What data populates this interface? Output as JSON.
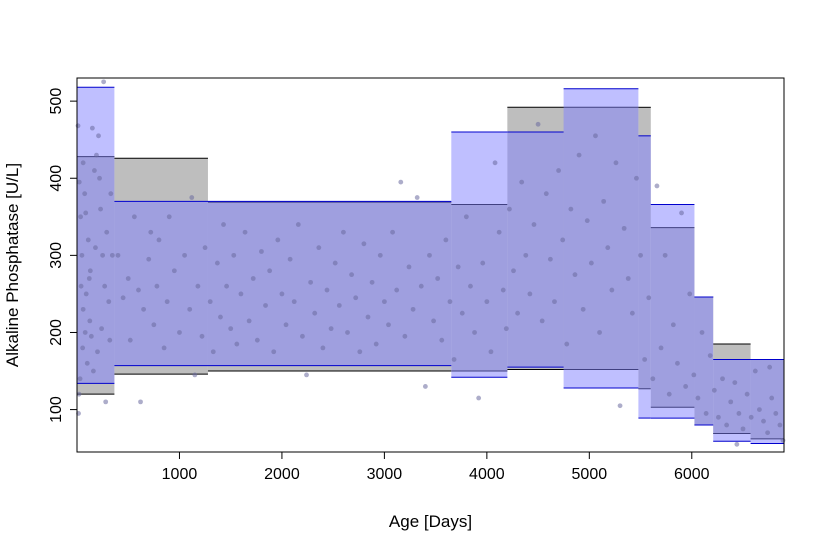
{
  "chart_data": {
    "type": "scatter",
    "xlabel": "Age [Days]",
    "ylabel": "Alkaline Phosphatase [U/L]",
    "xlim": [
      0,
      6900
    ],
    "ylim": [
      45,
      530
    ],
    "x_ticks": [
      1000,
      2000,
      3000,
      4000,
      5000,
      6000
    ],
    "y_ticks": [
      100,
      200,
      300,
      400,
      500
    ],
    "grid": false,
    "legend": "none",
    "colors": {
      "gray_band": "#bebebe",
      "blue_band": "#8080ff",
      "blue_line": "#0000cd",
      "points": "#6a6a9e"
    },
    "gray_bands": [
      {
        "x0": 0,
        "x1": 365,
        "lower": 120,
        "upper": 428
      },
      {
        "x0": 365,
        "x1": 1278,
        "lower": 146,
        "upper": 426
      },
      {
        "x0": 1278,
        "x1": 3653,
        "lower": 150,
        "upper": 369
      },
      {
        "x0": 3653,
        "x1": 4200,
        "lower": 150,
        "upper": 366
      },
      {
        "x0": 4200,
        "x1": 5479,
        "lower": 152,
        "upper": 492
      },
      {
        "x0": 5479,
        "x1": 5600,
        "lower": 127,
        "upper": 492
      },
      {
        "x0": 5600,
        "x1": 6026,
        "lower": 103,
        "upper": 336
      },
      {
        "x0": 6026,
        "x1": 6209,
        "lower": 80,
        "upper": 246
      },
      {
        "x0": 6209,
        "x1": 6574,
        "lower": 69,
        "upper": 185
      },
      {
        "x0": 6574,
        "x1": 6900,
        "lower": 62,
        "upper": 165
      }
    ],
    "blue_bands": [
      {
        "x0": 0,
        "x1": 365,
        "lower": 134,
        "upper": 518
      },
      {
        "x0": 365,
        "x1": 3653,
        "lower": 157,
        "upper": 370
      },
      {
        "x0": 3653,
        "x1": 4200,
        "lower": 142,
        "upper": 460
      },
      {
        "x0": 4200,
        "x1": 4749,
        "lower": 155,
        "upper": 460
      },
      {
        "x0": 4749,
        "x1": 5479,
        "lower": 128,
        "upper": 516
      },
      {
        "x0": 5479,
        "x1": 5600,
        "lower": 89,
        "upper": 455
      },
      {
        "x0": 5600,
        "x1": 6026,
        "lower": 89,
        "upper": 366
      },
      {
        "x0": 6026,
        "x1": 6209,
        "lower": 80,
        "upper": 246
      },
      {
        "x0": 6209,
        "x1": 6574,
        "lower": 59,
        "upper": 165
      },
      {
        "x0": 6574,
        "x1": 6900,
        "lower": 56,
        "upper": 165
      }
    ],
    "points": [
      [
        10,
        468
      ],
      [
        22,
        395
      ],
      [
        35,
        350
      ],
      [
        48,
        300
      ],
      [
        60,
        420
      ],
      [
        75,
        380
      ],
      [
        90,
        250
      ],
      [
        110,
        320
      ],
      [
        130,
        280
      ],
      [
        150,
        465
      ],
      [
        170,
        410
      ],
      [
        190,
        430
      ],
      [
        210,
        455
      ],
      [
        230,
        360
      ],
      [
        250,
        300
      ],
      [
        270,
        260
      ],
      [
        290,
        330
      ],
      [
        310,
        240
      ],
      [
        330,
        380
      ],
      [
        345,
        300
      ],
      [
        15,
        95
      ],
      [
        30,
        140
      ],
      [
        55,
        180
      ],
      [
        80,
        200
      ],
      [
        100,
        160
      ],
      [
        125,
        215
      ],
      [
        140,
        195
      ],
      [
        160,
        150
      ],
      [
        200,
        175
      ],
      [
        240,
        205
      ],
      [
        280,
        110
      ],
      [
        320,
        190
      ],
      [
        260,
        525
      ],
      [
        180,
        310
      ],
      [
        120,
        270
      ],
      [
        60,
        230
      ],
      [
        40,
        260
      ],
      [
        20,
        120
      ],
      [
        85,
        355
      ],
      [
        220,
        400
      ],
      [
        400,
        300
      ],
      [
        450,
        245
      ],
      [
        500,
        270
      ],
      [
        520,
        190
      ],
      [
        560,
        350
      ],
      [
        600,
        255
      ],
      [
        620,
        110
      ],
      [
        650,
        230
      ],
      [
        700,
        295
      ],
      [
        720,
        330
      ],
      [
        750,
        210
      ],
      [
        780,
        260
      ],
      [
        800,
        320
      ],
      [
        850,
        180
      ],
      [
        880,
        240
      ],
      [
        900,
        350
      ],
      [
        950,
        280
      ],
      [
        1000,
        200
      ],
      [
        1050,
        300
      ],
      [
        1100,
        230
      ],
      [
        1120,
        375
      ],
      [
        1150,
        145
      ],
      [
        1180,
        260
      ],
      [
        1220,
        195
      ],
      [
        1250,
        310
      ],
      [
        1300,
        240
      ],
      [
        1330,
        175
      ],
      [
        1370,
        290
      ],
      [
        1400,
        220
      ],
      [
        1430,
        340
      ],
      [
        1460,
        260
      ],
      [
        1500,
        205
      ],
      [
        1530,
        300
      ],
      [
        1560,
        185
      ],
      [
        1600,
        250
      ],
      [
        1640,
        330
      ],
      [
        1680,
        215
      ],
      [
        1720,
        270
      ],
      [
        1760,
        190
      ],
      [
        1800,
        305
      ],
      [
        1840,
        235
      ],
      [
        1880,
        280
      ],
      [
        1920,
        175
      ],
      [
        1960,
        320
      ],
      [
        2000,
        250
      ],
      [
        2040,
        210
      ],
      [
        2080,
        295
      ],
      [
        2120,
        240
      ],
      [
        2160,
        340
      ],
      [
        2200,
        195
      ],
      [
        2240,
        145
      ],
      [
        2280,
        265
      ],
      [
        2320,
        225
      ],
      [
        2360,
        310
      ],
      [
        2400,
        180
      ],
      [
        2440,
        255
      ],
      [
        2480,
        205
      ],
      [
        2520,
        290
      ],
      [
        2560,
        235
      ],
      [
        2600,
        330
      ],
      [
        2640,
        200
      ],
      [
        2680,
        275
      ],
      [
        2720,
        245
      ],
      [
        2760,
        175
      ],
      [
        2800,
        315
      ],
      [
        2840,
        220
      ],
      [
        2880,
        265
      ],
      [
        2920,
        185
      ],
      [
        2960,
        300
      ],
      [
        3000,
        240
      ],
      [
        3040,
        210
      ],
      [
        3080,
        330
      ],
      [
        3120,
        255
      ],
      [
        3160,
        395
      ],
      [
        3200,
        195
      ],
      [
        3240,
        285
      ],
      [
        3280,
        230
      ],
      [
        3320,
        375
      ],
      [
        3360,
        260
      ],
      [
        3400,
        130
      ],
      [
        3440,
        300
      ],
      [
        3480,
        215
      ],
      [
        3520,
        270
      ],
      [
        3560,
        190
      ],
      [
        3600,
        320
      ],
      [
        3640,
        240
      ],
      [
        3680,
        165
      ],
      [
        3720,
        285
      ],
      [
        3760,
        225
      ],
      [
        3800,
        350
      ],
      [
        3840,
        260
      ],
      [
        3880,
        200
      ],
      [
        3920,
        115
      ],
      [
        3960,
        290
      ],
      [
        4000,
        240
      ],
      [
        4040,
        175
      ],
      [
        4080,
        420
      ],
      [
        4120,
        330
      ],
      [
        4160,
        255
      ],
      [
        4190,
        205
      ],
      [
        4220,
        360
      ],
      [
        4260,
        280
      ],
      [
        4300,
        225
      ],
      [
        4340,
        395
      ],
      [
        4380,
        300
      ],
      [
        4420,
        250
      ],
      [
        4460,
        340
      ],
      [
        4500,
        470
      ],
      [
        4540,
        215
      ],
      [
        4580,
        380
      ],
      [
        4620,
        295
      ],
      [
        4660,
        240
      ],
      [
        4700,
        410
      ],
      [
        4740,
        320
      ],
      [
        4780,
        185
      ],
      [
        4820,
        360
      ],
      [
        4860,
        275
      ],
      [
        4900,
        430
      ],
      [
        4940,
        230
      ],
      [
        4980,
        345
      ],
      [
        5020,
        290
      ],
      [
        5060,
        455
      ],
      [
        5100,
        200
      ],
      [
        5140,
        370
      ],
      [
        5180,
        310
      ],
      [
        5220,
        255
      ],
      [
        5260,
        420
      ],
      [
        5300,
        105
      ],
      [
        5340,
        335
      ],
      [
        5380,
        270
      ],
      [
        5420,
        225
      ],
      [
        5460,
        400
      ],
      [
        5500,
        300
      ],
      [
        5540,
        165
      ],
      [
        5580,
        245
      ],
      [
        5620,
        140
      ],
      [
        5660,
        390
      ],
      [
        5700,
        180
      ],
      [
        5740,
        300
      ],
      [
        5780,
        120
      ],
      [
        5820,
        210
      ],
      [
        5860,
        160
      ],
      [
        5900,
        355
      ],
      [
        5940,
        130
      ],
      [
        5980,
        250
      ],
      [
        6020,
        145
      ],
      [
        6060,
        115
      ],
      [
        6100,
        200
      ],
      [
        6140,
        95
      ],
      [
        6180,
        170
      ],
      [
        6220,
        125
      ],
      [
        6260,
        90
      ],
      [
        6300,
        140
      ],
      [
        6340,
        80
      ],
      [
        6380,
        110
      ],
      [
        6420,
        135
      ],
      [
        6460,
        95
      ],
      [
        6500,
        75
      ],
      [
        6540,
        120
      ],
      [
        6580,
        90
      ],
      [
        6620,
        150
      ],
      [
        6660,
        100
      ],
      [
        6700,
        85
      ],
      [
        6740,
        70
      ],
      [
        6780,
        115
      ],
      [
        6820,
        95
      ],
      [
        6860,
        80
      ],
      [
        6890,
        60
      ],
      [
        6440,
        55
      ],
      [
        6760,
        155
      ]
    ]
  }
}
